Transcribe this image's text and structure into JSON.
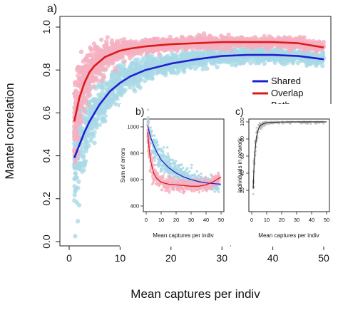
{
  "panel_labels": {
    "a": "a)",
    "b": "b)",
    "c": "c)"
  },
  "legend": {
    "placement": "right",
    "items": [
      {
        "label": "Shared",
        "color": "#1f1fd0"
      },
      {
        "label": "Overlap",
        "color": "#dd1a1a"
      },
      {
        "label": "Both",
        "color": "#111111"
      }
    ]
  },
  "colors": {
    "scatter_shared": "#a8d8e6",
    "scatter_overlap": "#f5b0c0",
    "line_shared": "#1f1fd0",
    "line_overlap": "#dd1a1a",
    "both_band": "#b8b8b8",
    "both_line": "#333333"
  },
  "chart_data": [
    {
      "id": "a",
      "type": "scatter",
      "xlabel": "Mean captures per indiv",
      "ylabel": "Mantel correlation",
      "xlim": [
        0,
        52
      ],
      "ylim": [
        0,
        1.0
      ],
      "xticks": [
        0,
        10,
        20,
        30,
        40,
        50
      ],
      "yticks": [
        0.0,
        0.2,
        0.4,
        0.6,
        0.8,
        1.0
      ],
      "ytick_labels": [
        "0.0",
        "0.2",
        "0.4",
        "0.6",
        "0.8",
        "1.0"
      ],
      "grid": false,
      "series": [
        {
          "name": "Shared",
          "x": [
            1,
            2,
            3,
            4,
            5,
            6,
            7,
            8,
            10,
            12,
            15,
            20,
            25,
            30,
            35,
            40,
            45,
            50
          ],
          "y": [
            0.39,
            0.45,
            0.51,
            0.56,
            0.6,
            0.64,
            0.67,
            0.7,
            0.74,
            0.77,
            0.8,
            0.83,
            0.85,
            0.865,
            0.87,
            0.87,
            0.865,
            0.85
          ]
        },
        {
          "name": "Overlap",
          "x": [
            1,
            2,
            3,
            4,
            5,
            6,
            7,
            8,
            10,
            12,
            15,
            20,
            25,
            30,
            35,
            40,
            45,
            50
          ],
          "y": [
            0.56,
            0.67,
            0.74,
            0.79,
            0.82,
            0.84,
            0.86,
            0.87,
            0.89,
            0.9,
            0.91,
            0.92,
            0.925,
            0.93,
            0.93,
            0.93,
            0.925,
            0.905
          ]
        }
      ]
    },
    {
      "id": "b",
      "type": "line",
      "xlabel": "Mean captures per indiv",
      "ylabel": "Sum of errors",
      "xlim": [
        0,
        50
      ],
      "ylim": [
        400,
        1100
      ],
      "xticks": [
        0,
        10,
        20,
        30,
        40,
        50
      ],
      "yticks": [
        400,
        600,
        800,
        1000
      ],
      "series": [
        {
          "name": "Shared",
          "x": [
            1,
            2,
            3,
            5,
            7,
            10,
            15,
            20,
            25,
            30,
            35,
            40,
            45,
            50
          ],
          "y": [
            1010,
            960,
            920,
            860,
            810,
            750,
            690,
            650,
            620,
            600,
            585,
            575,
            570,
            565
          ]
        },
        {
          "name": "Overlap",
          "x": [
            1,
            2,
            3,
            5,
            7,
            10,
            15,
            20,
            25,
            30,
            35,
            40,
            45,
            50
          ],
          "y": [
            960,
            830,
            740,
            650,
            610,
            580,
            565,
            560,
            555,
            550,
            550,
            560,
            585,
            620
          ]
        }
      ]
    },
    {
      "id": "c",
      "type": "line",
      "xlabel": "Mean captures per indiv",
      "ylabel": "Individuals in network",
      "xlim": [
        0,
        50
      ],
      "ylim": [
        0,
        100
      ],
      "xticks": [
        0,
        10,
        20,
        30,
        40,
        50
      ],
      "yticks": [
        20,
        40,
        60,
        80,
        100
      ],
      "series": [
        {
          "name": "Both",
          "x": [
            1,
            1.5,
            2,
            3,
            4,
            5,
            6,
            8,
            10,
            15,
            20,
            30,
            40,
            50
          ],
          "y": [
            22,
            45,
            62,
            80,
            89,
            94,
            96,
            98,
            99,
            99.5,
            99.8,
            100,
            100,
            100
          ]
        }
      ]
    }
  ]
}
